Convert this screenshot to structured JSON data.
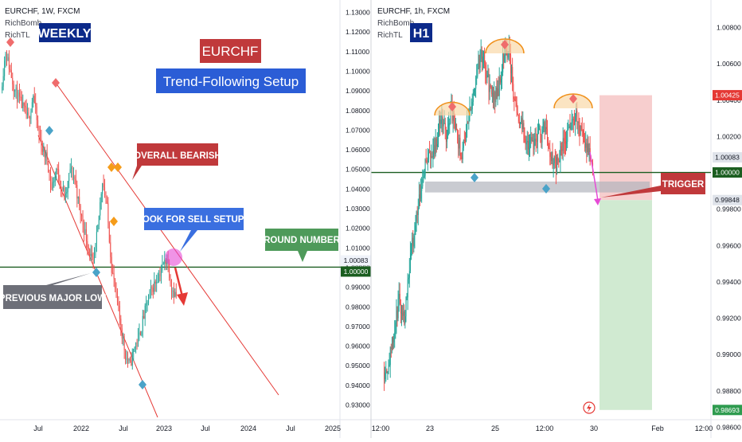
{
  "left_panel": {
    "symbol": "EURCHF, 1W, FXCM",
    "author": "RichBomb",
    "indicator": "RichTL",
    "timeframe_badge": "WEEKLY",
    "title": "EURCHF",
    "subtitle": "Trend-Following Setup",
    "annotations": {
      "overall_bearish": "OVERALL BEARISH",
      "look_for_sell": "LOOK FOR SELL SETUPS",
      "round_number": "ROUND NUMBER",
      "previous_major_low": "PREVIOUS MAJOR LOW"
    },
    "price_ticks": [
      "1.13000",
      "1.12000",
      "1.11000",
      "1.10000",
      "1.09000",
      "1.08000",
      "1.07000",
      "1.06000",
      "1.05000",
      "1.04000",
      "1.03000",
      "1.02000",
      "1.01000",
      "1.00000",
      "0.99000",
      "0.98000",
      "0.97000",
      "0.96000",
      "0.95000",
      "0.94000",
      "0.93000"
    ],
    "price_tick_values": [
      1.13,
      1.12,
      1.11,
      1.1,
      1.09,
      1.08,
      1.07,
      1.06,
      1.05,
      1.04,
      1.03,
      1.02,
      1.01,
      1.0,
      0.99,
      0.98,
      0.97,
      0.96,
      0.95,
      0.94,
      0.93
    ],
    "current_price_label": "1.00083",
    "level_label": "1.00000",
    "time_ticks": [
      "Jul",
      "2022",
      "Jul",
      "2023",
      "Jul",
      "2024",
      "Jul",
      "2025"
    ]
  },
  "right_panel": {
    "symbol": "EURCHF, 1h, FXCM",
    "author": "RichBomb",
    "indicator": "RichTL",
    "timeframe_badge": "H1",
    "trigger_label": "TRIGGER",
    "price_ticks": [
      "1.00800",
      "1.00600",
      "1.00400",
      "1.00200",
      "1.00000",
      "0.99800",
      "0.99600",
      "0.99400",
      "0.99200",
      "0.99000",
      "0.98800",
      "0.98600"
    ],
    "price_tick_values": [
      1.008,
      1.006,
      1.004,
      1.002,
      1.0,
      0.998,
      0.996,
      0.994,
      0.992,
      0.99,
      0.988,
      0.986
    ],
    "stop_label": "1.00425",
    "current_label": "1.00083",
    "level_label": "1.00000",
    "entry_label": "0.99848",
    "target_label": "0.98693",
    "time_ticks": [
      "12:00",
      "23",
      "25",
      "12:00",
      "30",
      "Feb",
      "12:00"
    ]
  },
  "colors": {
    "bull": "#26a69a",
    "bear": "#ef5350",
    "level": "#1b5e20",
    "trendline": "#e53935",
    "stop_zone": "#f6c6c6",
    "target_zone": "#c8e6c9",
    "title_red": "#c0393b",
    "title_blue": "#2b5dd6",
    "badge_navy": "#0c2a8a",
    "bearish_box": "#c0393b",
    "sell_box": "#3a6fe0",
    "round_box": "#4e9a5a",
    "prev_low_box": "#6d6f78",
    "trigger_box": "#c0393b"
  },
  "chart_data": [
    {
      "type": "candlestick",
      "title": "EURCHF, 1W, FXCM",
      "x_ticks": [
        "Jul",
        "2022",
        "Jul",
        "2023",
        "Jul",
        "2024",
        "Jul",
        "2025"
      ],
      "ylim": [
        0.93,
        1.13
      ],
      "key_level": 1.0,
      "close_path": [
        1.09,
        1.11,
        1.1,
        1.09,
        1.085,
        1.08,
        1.075,
        1.088,
        1.07,
        1.06,
        1.055,
        1.04,
        1.05,
        1.042,
        1.035,
        1.05,
        1.045,
        1.03,
        1.02,
        1.01,
        1.0,
        1.02,
        1.045,
        1.03,
        1.0,
        0.985,
        0.97,
        0.955,
        0.95,
        0.96,
        0.965,
        0.975,
        0.985,
        0.99,
        0.995,
        1.0,
        1.005,
        0.99,
        0.985
      ],
      "markers": [
        {
          "label": "high",
          "value": 1.112
        },
        {
          "label": "low",
          "value": 0.94
        },
        {
          "label": "previous major low",
          "value": 1.0
        }
      ]
    },
    {
      "type": "candlestick",
      "title": "EURCHF, 1h, FXCM",
      "x_ticks": [
        "12:00",
        "23",
        "25",
        "12:00",
        "30",
        "Feb",
        "12:00"
      ],
      "ylim": [
        0.986,
        1.009
      ],
      "key_level": 1.0,
      "close_path": [
        0.989,
        0.9895,
        0.991,
        0.993,
        0.992,
        0.995,
        0.997,
        0.999,
        1.0005,
        1.001,
        1.0015,
        1.003,
        1.002,
        1.0035,
        1.002,
        1.001,
        1.0025,
        1.004,
        1.006,
        1.0065,
        1.005,
        1.004,
        1.0045,
        1.0065,
        1.0068,
        1.004,
        1.003,
        1.002,
        1.0015,
        1.0018,
        1.002,
        1.0025,
        1.001,
        1.0003,
        1.0012,
        1.002,
        1.0028,
        1.003,
        1.002,
        1.0012,
        1.0008
      ],
      "trade": {
        "stop": 1.00425,
        "entry": 0.99848,
        "target": 0.98693,
        "current": 1.00083
      }
    }
  ]
}
